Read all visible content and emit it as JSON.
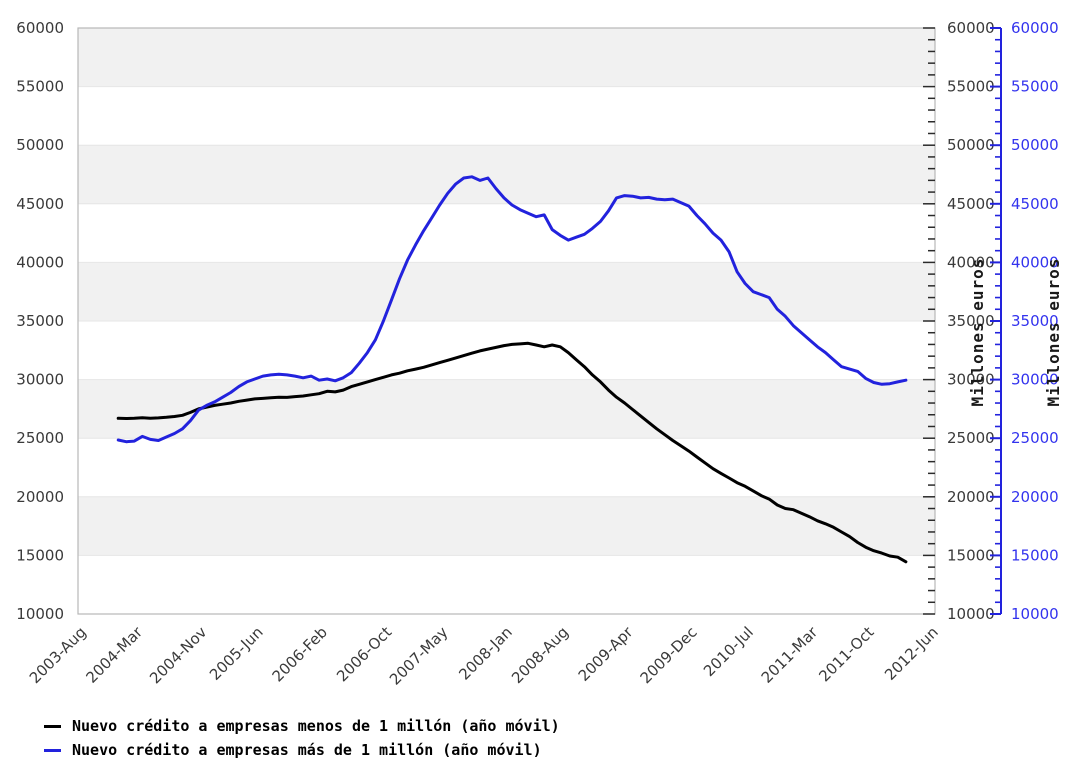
{
  "chart_data": {
    "type": "line",
    "title": "",
    "x_axis": {
      "tick_labels": [
        "2003-Aug",
        "2004-Mar",
        "2004-Nov",
        "2005-Jun",
        "2006-Feb",
        "2006-Oct",
        "2007-May",
        "2008-Jan",
        "2008-Aug",
        "2009-Apr",
        "2009-Dec",
        "2010-Jul",
        "2011-Mar",
        "2011-Oct",
        "2012-Jun"
      ],
      "tick_month_index": [
        0,
        7,
        15,
        22,
        30,
        38,
        45,
        53,
        60,
        68,
        76,
        83,
        91,
        98,
        106
      ],
      "range_month_index": [
        0,
        106.6
      ]
    },
    "y_axes": {
      "range": [
        10000,
        60000
      ],
      "tick_step": 5000,
      "minor_tick_step": 1000,
      "tick_labels": [
        "10000",
        "15000",
        "20000",
        "25000",
        "30000",
        "35000",
        "40000",
        "45000",
        "50000",
        "55000",
        "60000"
      ],
      "right_inner": {
        "unit_label": "Millones euros",
        "tick_color": "#2a2a2a",
        "label_color": "#1a1a1a"
      },
      "right_outer": {
        "unit_label": "Millones euros",
        "axis_color": "#2222dd",
        "tick_label_color": "#3333ee",
        "label_color": "#1a1a1a"
      }
    },
    "series": [
      {
        "id": "menos",
        "name": "Nuevo crédito a empresas menos de 1 millón (año móvil)",
        "color": "#000000",
        "start_month_index": 5,
        "monthly_values": [
          26700,
          26680,
          26700,
          26750,
          26700,
          26730,
          26780,
          26850,
          26950,
          27200,
          27500,
          27650,
          27800,
          27900,
          28000,
          28150,
          28250,
          28350,
          28400,
          28450,
          28500,
          28480,
          28550,
          28600,
          28700,
          28800,
          29000,
          28950,
          29100,
          29400,
          29600,
          29800,
          30000,
          30200,
          30400,
          30550,
          30750,
          30900,
          31050,
          31250,
          31450,
          31650,
          31850,
          32050,
          32250,
          32450,
          32600,
          32750,
          32900,
          33000,
          33050,
          33100,
          32950,
          32800,
          32950,
          32800,
          32300,
          31700,
          31100,
          30400,
          29800,
          29100,
          28500,
          28000,
          27450,
          26900,
          26350,
          25800,
          25300,
          24800,
          24350,
          23900,
          23400,
          22900,
          22400,
          22000,
          21600,
          21200,
          20900,
          20500,
          20100,
          19800,
          19300,
          19000,
          18900,
          18600,
          18300,
          17950,
          17700,
          17400,
          17000,
          16600,
          16100,
          15700,
          15400,
          15200,
          14950,
          14850,
          14450
        ]
      },
      {
        "id": "mas",
        "name": "Nuevo crédito a empresas más de 1 millón (año móvil)",
        "color": "#2222dd",
        "start_month_index": 5,
        "monthly_values": [
          24850,
          24700,
          24750,
          25150,
          24900,
          24800,
          25100,
          25400,
          25800,
          26500,
          27400,
          27800,
          28100,
          28500,
          28900,
          29400,
          29800,
          30050,
          30300,
          30400,
          30450,
          30400,
          30300,
          30150,
          30300,
          29950,
          30050,
          29900,
          30150,
          30600,
          31400,
          32300,
          33400,
          35000,
          36800,
          38600,
          40200,
          41500,
          42700,
          43800,
          44900,
          45900,
          46700,
          47200,
          47300,
          47000,
          47200,
          46300,
          45500,
          44900,
          44500,
          44200,
          43900,
          44050,
          42800,
          42300,
          41900,
          42150,
          42400,
          42900,
          43500,
          44400,
          45500,
          45700,
          45650,
          45500,
          45550,
          45400,
          45350,
          45400,
          45100,
          44800,
          44000,
          43300,
          42500,
          41900,
          40900,
          39200,
          38200,
          37500,
          37250,
          37000,
          36000,
          35400,
          34600,
          34000,
          33400,
          32800,
          32300,
          31700,
          31100,
          30900,
          30700,
          30100,
          29750,
          29600,
          29650,
          29800,
          29950
        ]
      }
    ],
    "style": {
      "band_fill": "#f1f1f1",
      "band_ranges": [
        [
          15000,
          20000
        ],
        [
          25000,
          30000
        ],
        [
          35000,
          40000
        ],
        [
          45000,
          50000
        ],
        [
          55000,
          60000
        ]
      ],
      "grid_color": "#e6e6e6",
      "border_color": "#b8b8b8",
      "text_color": "#3a3a3a"
    }
  },
  "legend": {
    "items": [
      {
        "label": "Nuevo crédito a empresas menos de 1 millón (año móvil)",
        "color": "#000000"
      },
      {
        "label": "Nuevo crédito a empresas más de 1 millón (año móvil)",
        "color": "#2222dd"
      }
    ]
  }
}
